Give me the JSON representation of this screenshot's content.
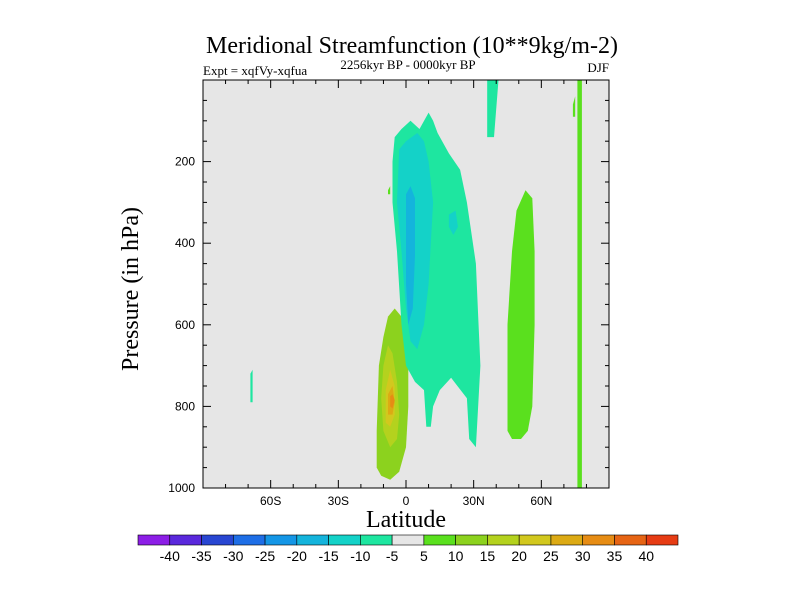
{
  "chart_data": {
    "type": "heatmap",
    "title": "Meridional Streamfunction (10**9kg/m-2)",
    "experiment": "Expt = xqfVy-xqfua",
    "period": "2256kyr BP - 0000kyr BP",
    "season": "DJF",
    "xlabel": "Latitude",
    "ylabel": "Pressure (in hPa)",
    "xlim": [
      -90,
      90
    ],
    "ylim": [
      1000,
      0
    ],
    "x_ticks": [
      {
        "value": -60,
        "label": "60S"
      },
      {
        "value": -30,
        "label": "30S"
      },
      {
        "value": 0,
        "label": "0"
      },
      {
        "value": 30,
        "label": "30N"
      },
      {
        "value": 60,
        "label": "60N"
      }
    ],
    "y_ticks": [
      {
        "value": 200,
        "label": "200"
      },
      {
        "value": 400,
        "label": "400"
      },
      {
        "value": 600,
        "label": "600"
      },
      {
        "value": 800,
        "label": "800"
      },
      {
        "value": 1000,
        "label": "1000"
      }
    ],
    "colorbar": {
      "labels": [
        "-40",
        "-35",
        "-30",
        "-25",
        "-20",
        "-15",
        "-10",
        "-5",
        "5",
        "10",
        "15",
        "20",
        "25",
        "30",
        "35",
        "40"
      ],
      "colors": [
        "#8c1ee6",
        "#5a28dc",
        "#2846d2",
        "#1e6ee6",
        "#1496e6",
        "#14b4dc",
        "#14d2c8",
        "#1ee6a0",
        "#e6e6e6",
        "#5ae01e",
        "#8cd21e",
        "#b4d21e",
        "#d2c81e",
        "#dcaa14",
        "#e68c14",
        "#e66414",
        "#e63c14"
      ]
    },
    "regions": [
      {
        "level": 10,
        "pts": [
          [
            -13,
            950
          ],
          [
            -13,
            860
          ],
          [
            -12,
            700
          ],
          [
            -10,
            630
          ],
          [
            -8,
            580
          ],
          [
            -5,
            560
          ],
          [
            -2,
            580
          ],
          [
            0,
            620
          ],
          [
            1,
            700
          ],
          [
            1,
            800
          ],
          [
            0,
            900
          ],
          [
            -3,
            960
          ],
          [
            -7,
            980
          ],
          [
            -11,
            970
          ]
        ]
      },
      {
        "level": 15,
        "pts": [
          [
            -10,
            860
          ],
          [
            -11,
            780
          ],
          [
            -10,
            700
          ],
          [
            -8,
            650
          ],
          [
            -6,
            670
          ],
          [
            -4,
            740
          ],
          [
            -3,
            820
          ],
          [
            -4,
            880
          ],
          [
            -7,
            900
          ]
        ]
      },
      {
        "level": 20,
        "pts": [
          [
            -9,
            840
          ],
          [
            -9,
            760
          ],
          [
            -7,
            710
          ],
          [
            -5,
            750
          ],
          [
            -5,
            820
          ],
          [
            -7,
            850
          ]
        ]
      },
      {
        "level": 25,
        "pts": [
          [
            -8,
            820
          ],
          [
            -8,
            770
          ],
          [
            -6,
            750
          ],
          [
            -5,
            790
          ],
          [
            -6,
            820
          ]
        ]
      },
      {
        "level": 30,
        "pts": [
          [
            -7,
            800
          ],
          [
            -7,
            775
          ],
          [
            -6,
            770
          ],
          [
            -5,
            785
          ],
          [
            -6,
            805
          ]
        ]
      },
      {
        "level": -5,
        "pts": [
          [
            -5,
            140
          ],
          [
            -2,
            120
          ],
          [
            2,
            100
          ],
          [
            6,
            120
          ],
          [
            10,
            80
          ],
          [
            12,
            100
          ],
          [
            14,
            130
          ],
          [
            19,
            180
          ],
          [
            24,
            220
          ],
          [
            27,
            300
          ],
          [
            31,
            450
          ],
          [
            32,
            580
          ],
          [
            33,
            700
          ],
          [
            31,
            900
          ],
          [
            28,
            880
          ],
          [
            27,
            780
          ],
          [
            20,
            730
          ],
          [
            15,
            760
          ],
          [
            12,
            800
          ],
          [
            11,
            850
          ],
          [
            9,
            850
          ],
          [
            8,
            760
          ],
          [
            4,
            740
          ],
          [
            0,
            700
          ],
          [
            -2,
            600
          ],
          [
            -4,
            420
          ],
          [
            -6,
            300
          ],
          [
            -6,
            200
          ]
        ]
      },
      {
        "level": -10,
        "pts": [
          [
            -3,
            170
          ],
          [
            0,
            150
          ],
          [
            5,
            130
          ],
          [
            8,
            150
          ],
          [
            10,
            200
          ],
          [
            12,
            300
          ],
          [
            11,
            400
          ],
          [
            10,
            500
          ],
          [
            8,
            600
          ],
          [
            5,
            660
          ],
          [
            2,
            640
          ],
          [
            0,
            560
          ],
          [
            -2,
            420
          ],
          [
            -4,
            300
          ]
        ]
      },
      {
        "level": -15,
        "pts": [
          [
            0,
            280
          ],
          [
            2,
            260
          ],
          [
            4,
            290
          ],
          [
            4,
            430
          ],
          [
            3,
            560
          ],
          [
            1,
            600
          ],
          [
            0,
            500
          ]
        ]
      },
      {
        "level": -10,
        "pts": [
          [
            19,
            330
          ],
          [
            22,
            320
          ],
          [
            23,
            360
          ],
          [
            21,
            380
          ],
          [
            19,
            360
          ]
        ]
      },
      {
        "level": 5,
        "pts": [
          [
            45,
            860
          ],
          [
            45,
            600
          ],
          [
            47,
            420
          ],
          [
            49,
            320
          ],
          [
            53,
            270
          ],
          [
            56,
            290
          ],
          [
            57,
            420
          ],
          [
            57,
            600
          ],
          [
            56,
            800
          ],
          [
            54,
            860
          ],
          [
            51,
            880
          ],
          [
            49,
            880
          ],
          [
            47,
            880
          ]
        ]
      },
      {
        "level": 5,
        "pts": [
          [
            76,
            0
          ],
          [
            78,
            0
          ],
          [
            78,
            1000
          ],
          [
            76,
            1000
          ]
        ]
      },
      {
        "level": 5,
        "pts": [
          [
            74,
            60
          ],
          [
            75,
            40
          ],
          [
            75,
            90
          ],
          [
            74,
            90
          ]
        ]
      },
      {
        "level": -5,
        "pts": [
          [
            36,
            0
          ],
          [
            41,
            0
          ],
          [
            39,
            140
          ],
          [
            36,
            140
          ]
        ]
      },
      {
        "level": -5,
        "pts": [
          [
            -69,
            720
          ],
          [
            -68,
            710
          ],
          [
            -68,
            790
          ],
          [
            -69,
            790
          ]
        ]
      },
      {
        "level": -5,
        "pts": [
          [
            1,
            110
          ],
          [
            2,
            100
          ],
          [
            2,
            120
          ],
          [
            1,
            120
          ]
        ]
      },
      {
        "level": 5,
        "pts": [
          [
            -8,
            270
          ],
          [
            -7,
            260
          ],
          [
            -7,
            280
          ],
          [
            -8,
            280
          ]
        ]
      }
    ]
  }
}
